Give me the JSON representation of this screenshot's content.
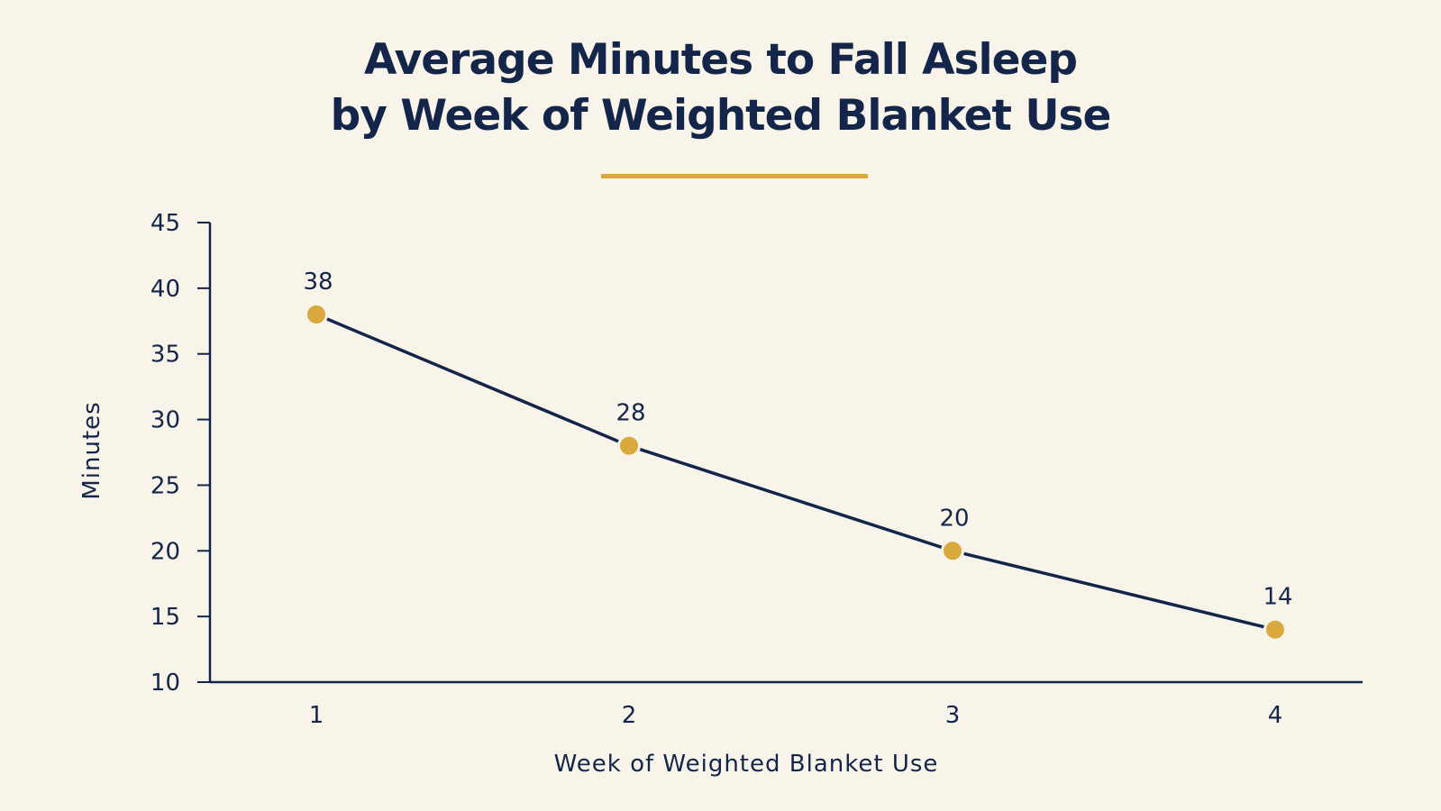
{
  "chart_data": {
    "type": "line",
    "title_lines": [
      "Average Minutes to Fall Asleep",
      "by Week of Weighted Blanket Use"
    ],
    "xlabel": "Week of Weighted Blanket Use",
    "ylabel": "Minutes",
    "x": [
      "1",
      "2",
      "3",
      "4"
    ],
    "values": [
      38,
      28,
      20,
      14
    ],
    "data_labels": [
      "38",
      "28",
      "20",
      "14"
    ],
    "ylim": [
      10,
      45
    ],
    "yticks": [
      10,
      15,
      20,
      25,
      30,
      35,
      40,
      45
    ],
    "grid": false,
    "legend": "none",
    "colors": {
      "line": "#14254a",
      "marker": "#d9a93d",
      "accent": "#d9a93d",
      "background": "#f8f4ea"
    }
  }
}
